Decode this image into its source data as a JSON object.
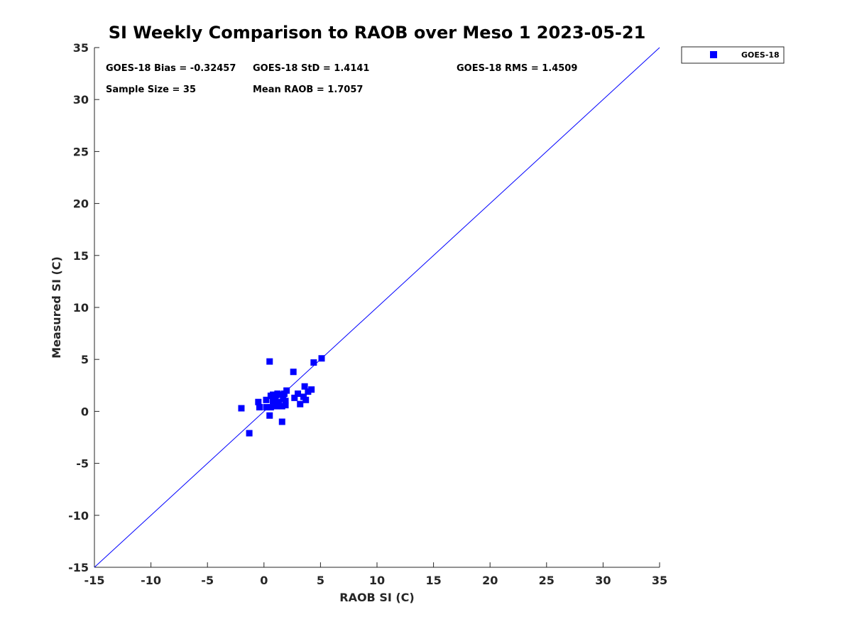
{
  "chart_data": {
    "type": "scatter",
    "title": "SI Weekly Comparison to RAOB over Meso 1 2023-05-21",
    "xlabel": "RAOB SI (C)",
    "ylabel": "Measured SI (C)",
    "xlim": [
      -15,
      35
    ],
    "ylim": [
      -15,
      35
    ],
    "xticks": [
      -15,
      -10,
      -5,
      0,
      5,
      10,
      15,
      20,
      25,
      30,
      35
    ],
    "yticks": [
      -15,
      -10,
      -5,
      0,
      5,
      10,
      15,
      20,
      25,
      30,
      35
    ],
    "grid": false,
    "legend_position": "outside-top-right",
    "reference_line": {
      "name": "1:1 line",
      "x": [
        -15,
        35
      ],
      "y": [
        -15,
        35
      ],
      "color": "#0000ff"
    },
    "series": [
      {
        "name": "GOES-18",
        "marker": "square",
        "color": "#0000ff",
        "points": [
          [
            -2.0,
            0.3
          ],
          [
            -1.3,
            -2.1
          ],
          [
            -0.5,
            0.9
          ],
          [
            -0.4,
            0.4
          ],
          [
            0.2,
            1.1
          ],
          [
            0.2,
            0.4
          ],
          [
            0.5,
            4.8
          ],
          [
            0.5,
            -0.4
          ],
          [
            0.6,
            1.5
          ],
          [
            0.6,
            0.4
          ],
          [
            0.8,
            1.6
          ],
          [
            0.8,
            1.0
          ],
          [
            1.0,
            1.4
          ],
          [
            1.1,
            0.5
          ],
          [
            1.2,
            1.7
          ],
          [
            1.3,
            0.9
          ],
          [
            1.5,
            1.6
          ],
          [
            1.6,
            -1.0
          ],
          [
            1.6,
            0.5
          ],
          [
            1.7,
            1.2
          ],
          [
            1.8,
            1.7
          ],
          [
            1.9,
            0.6
          ],
          [
            1.9,
            1.0
          ],
          [
            2.0,
            2.0
          ],
          [
            2.6,
            3.8
          ],
          [
            2.7,
            1.3
          ],
          [
            3.0,
            1.7
          ],
          [
            3.2,
            0.7
          ],
          [
            3.5,
            1.4
          ],
          [
            3.6,
            2.4
          ],
          [
            3.7,
            1.1
          ],
          [
            3.9,
            1.9
          ],
          [
            4.2,
            2.1
          ],
          [
            4.4,
            4.7
          ],
          [
            5.1,
            5.1
          ]
        ]
      }
    ],
    "stats": {
      "bias": "GOES-18 Bias = -0.32457",
      "std": "GOES-18 StD = 1.4141",
      "rms": "GOES-18 RMS = 1.4509",
      "sample_size": "Sample Size = 35",
      "mean_raob": "Mean RAOB = 1.7057"
    },
    "legend_entries": [
      "GOES-18"
    ]
  }
}
